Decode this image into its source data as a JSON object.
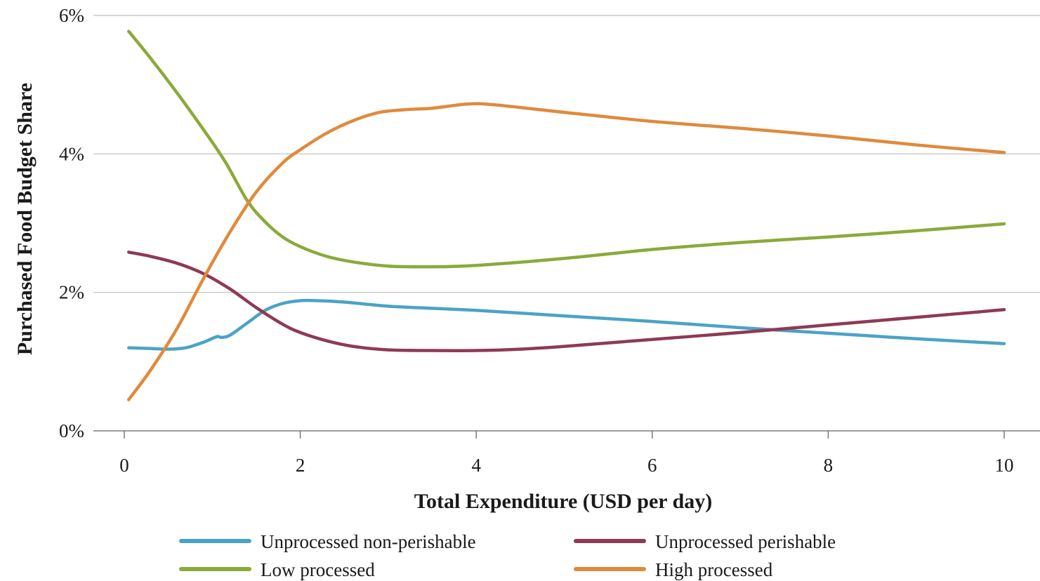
{
  "chart_data": {
    "type": "line",
    "title": "",
    "xlabel": "Total Expenditure (USD per day)",
    "ylabel": "Purchased Food Budget Share",
    "xlim": [
      0,
      10
    ],
    "ylim": [
      0,
      6
    ],
    "x_ticks": [
      0,
      2,
      4,
      6,
      8,
      10
    ],
    "x_tick_labels": [
      "0",
      "2",
      "4",
      "6",
      "8",
      "10"
    ],
    "y_ticks": [
      0,
      2,
      4,
      6
    ],
    "y_tick_labels": [
      "0%",
      "2%",
      "4%",
      "6%"
    ],
    "grid": "horizontal",
    "legend_position": "bottom",
    "series": [
      {
        "name": "Unprocessed non-perishable",
        "color": "#4aa3c6",
        "x": [
          0.05,
          0.3,
          0.5,
          0.7,
          0.9,
          1.05,
          1.1,
          1.2,
          1.4,
          1.6,
          1.8,
          2.0,
          2.2,
          2.5,
          3.0,
          3.5,
          4.0,
          5.0,
          6.0,
          7.0,
          8.0,
          9.0,
          10.0
        ],
        "y": [
          1.2,
          1.19,
          1.18,
          1.2,
          1.28,
          1.36,
          1.35,
          1.38,
          1.56,
          1.74,
          1.84,
          1.88,
          1.88,
          1.86,
          1.8,
          1.77,
          1.74,
          1.66,
          1.58,
          1.49,
          1.41,
          1.33,
          1.26
        ]
      },
      {
        "name": "Unprocessed perishable",
        "color": "#8e3a54",
        "x": [
          0.05,
          0.3,
          0.6,
          0.9,
          1.2,
          1.5,
          1.8,
          2.0,
          2.3,
          2.6,
          3.0,
          3.5,
          4.0,
          4.5,
          5.0,
          6.0,
          7.0,
          8.0,
          9.0,
          10.0
        ],
        "y": [
          2.58,
          2.52,
          2.42,
          2.27,
          2.05,
          1.78,
          1.54,
          1.42,
          1.3,
          1.22,
          1.17,
          1.16,
          1.16,
          1.18,
          1.22,
          1.32,
          1.42,
          1.53,
          1.64,
          1.75
        ]
      },
      {
        "name": "Low processed",
        "color": "#8aaa3a",
        "x": [
          0.05,
          0.3,
          0.6,
          0.9,
          1.15,
          1.4,
          1.6,
          1.8,
          2.0,
          2.3,
          2.6,
          3.0,
          3.5,
          4.0,
          5.0,
          6.0,
          7.0,
          8.0,
          9.0,
          10.0
        ],
        "y": [
          5.77,
          5.38,
          4.88,
          4.35,
          3.88,
          3.32,
          3.02,
          2.8,
          2.66,
          2.52,
          2.44,
          2.38,
          2.37,
          2.39,
          2.49,
          2.62,
          2.72,
          2.8,
          2.89,
          2.99
        ]
      },
      {
        "name": "High processed",
        "color": "#e08a3c",
        "x": [
          0.05,
          0.3,
          0.6,
          0.9,
          1.2,
          1.5,
          1.8,
          2.0,
          2.3,
          2.6,
          2.9,
          3.2,
          3.5,
          3.9,
          4.2,
          5.0,
          6.0,
          7.0,
          8.0,
          9.0,
          10.0
        ],
        "y": [
          0.45,
          0.88,
          1.48,
          2.2,
          2.87,
          3.45,
          3.87,
          4.06,
          4.3,
          4.48,
          4.6,
          4.64,
          4.66,
          4.72,
          4.71,
          4.6,
          4.47,
          4.37,
          4.26,
          4.13,
          4.02
        ]
      }
    ]
  }
}
